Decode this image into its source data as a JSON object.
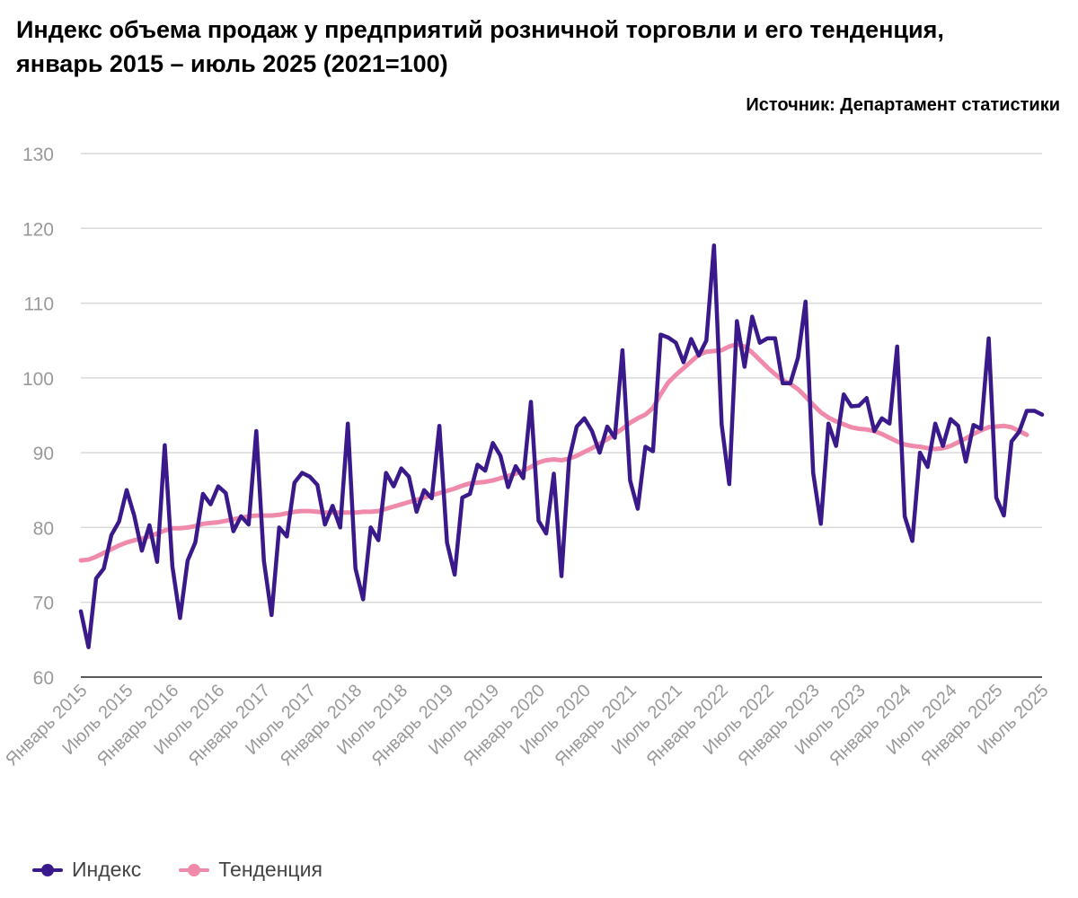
{
  "title": "Индекс объема продаж у предприятий розничной торговли и его тенденция, январь 2015 – июль 2025 (2021=100)",
  "source": "Источник: Департамент статистики",
  "colors": {
    "index": "#3a1a8a",
    "trend": "#f08aaa",
    "grid": "#d9d9d9",
    "axis": "#222222",
    "tick": "#999999"
  },
  "chart_data": {
    "type": "line",
    "title": "Индекс объема продаж у предприятий розничной торговли и его тенденция, январь 2015 – июль 2025 (2021=100)",
    "ylim": [
      60,
      130
    ],
    "yticks": [
      60,
      70,
      80,
      90,
      100,
      110,
      120,
      130
    ],
    "xticks": [
      "Январь 2015",
      "Июль 2015",
      "Январь 2016",
      "Июль 2016",
      "Январь 2017",
      "Июль 2017",
      "Январь 2018",
      "Июль 2018",
      "Январь 2019",
      "Июль 2019",
      "Январь 2020",
      "Июль 2020",
      "Январь 2021",
      "Июль 2021",
      "Январь 2022",
      "Июль 2022",
      "Январь 2023",
      "Июль 2023",
      "Январь 2024",
      "Июль 2024",
      "Январь 2025",
      "Июль 2025"
    ],
    "x_range": [
      "2015-01",
      "2025-07"
    ],
    "grid": true,
    "legend_position": "bottom-left",
    "series": [
      {
        "name": "Индекс",
        "values": [
          68.8,
          64.0,
          73.2,
          74.5,
          79.0,
          80.8,
          85.0,
          81.6,
          76.9,
          80.3,
          75.4,
          91.0,
          74.8,
          67.9,
          75.6,
          78.0,
          84.5,
          83.1,
          85.5,
          84.6,
          79.5,
          81.5,
          80.4,
          92.9,
          75.5,
          68.3,
          80.0,
          78.8,
          86.0,
          87.3,
          86.8,
          85.7,
          80.4,
          82.9,
          80.0,
          93.9,
          74.5,
          70.4,
          80.0,
          78.3,
          87.3,
          85.5,
          87.9,
          86.8,
          82.1,
          85.0,
          83.9,
          93.6,
          78.0,
          73.7,
          84.0,
          84.5,
          88.4,
          87.6,
          91.3,
          89.6,
          85.4,
          88.2,
          86.6,
          96.8,
          80.9,
          79.2,
          87.2,
          73.5,
          89.1,
          93.5,
          94.6,
          92.9,
          90.0,
          93.5,
          92.0,
          103.7,
          86.3,
          82.5,
          90.8,
          90.2,
          105.8,
          105.4,
          104.7,
          102.1,
          105.2,
          103.0,
          105.0,
          117.7,
          93.8,
          85.8,
          107.6,
          101.5,
          108.2,
          104.7,
          105.3,
          105.3,
          99.3,
          99.3,
          102.7,
          110.2,
          87.3,
          80.5,
          93.9,
          90.9,
          97.8,
          96.2,
          96.3,
          97.3,
          92.9,
          94.6,
          93.9,
          104.2,
          81.5,
          78.2,
          90.0,
          88.1,
          93.9,
          90.9,
          94.5,
          93.6,
          88.8,
          93.7,
          93.2,
          105.3,
          84.0,
          81.6,
          91.5,
          92.8,
          95.6,
          95.6,
          95.1
        ]
      },
      {
        "name": "Тенденция",
        "values": [
          75.6,
          75.7,
          76.1,
          76.6,
          77.1,
          77.6,
          78.0,
          78.3,
          78.5,
          78.8,
          79.2,
          79.6,
          79.9,
          79.9,
          80.0,
          80.2,
          80.5,
          80.6,
          80.7,
          80.9,
          81.1,
          81.3,
          81.5,
          81.6,
          81.6,
          81.6,
          81.7,
          81.9,
          82.1,
          82.2,
          82.2,
          82.1,
          82.0,
          82.0,
          82.0,
          82.0,
          82.0,
          82.1,
          82.1,
          82.2,
          82.5,
          82.8,
          83.1,
          83.4,
          83.7,
          84.0,
          84.3,
          84.6,
          84.9,
          85.2,
          85.6,
          85.9,
          86.0,
          86.1,
          86.3,
          86.6,
          86.9,
          87.2,
          87.6,
          88.1,
          88.7,
          89.0,
          89.1,
          89.0,
          89.2,
          89.6,
          90.1,
          90.6,
          91.2,
          91.8,
          92.5,
          93.2,
          94.0,
          94.6,
          95.1,
          96.0,
          97.8,
          99.4,
          100.4,
          101.3,
          102.2,
          103.1,
          103.5,
          103.6,
          103.7,
          104.2,
          104.5,
          104.2,
          103.4,
          102.4,
          101.4,
          100.5,
          99.7,
          99.2,
          98.5,
          97.5,
          96.4,
          95.4,
          94.7,
          94.2,
          93.8,
          93.4,
          93.2,
          93.1,
          92.9,
          92.5,
          92.0,
          91.5,
          91.1,
          90.9,
          90.8,
          90.6,
          90.5,
          90.6,
          90.9,
          91.4,
          91.9,
          92.5,
          93.0,
          93.4,
          93.5,
          93.6,
          93.4,
          92.9,
          92.4
        ]
      }
    ]
  }
}
